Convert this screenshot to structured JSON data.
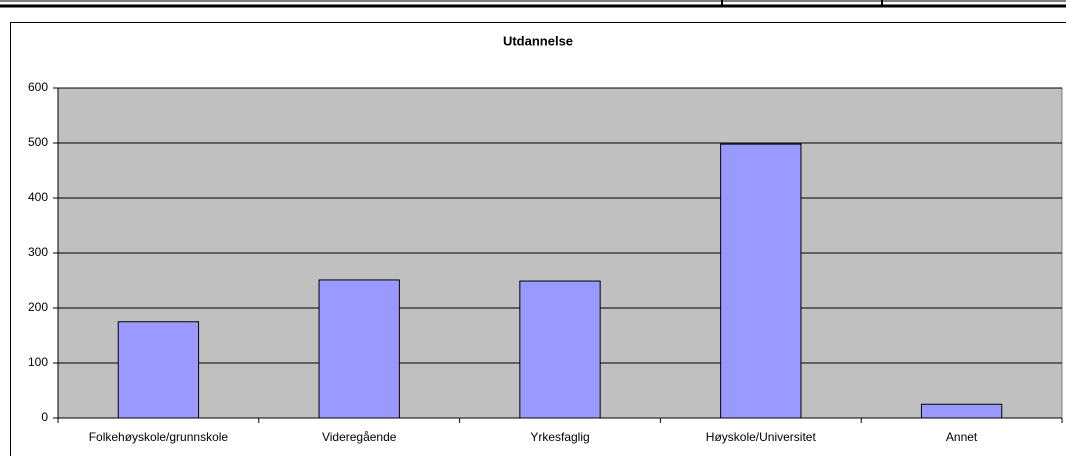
{
  "chart_data": {
    "type": "bar",
    "title": "Utdannelse",
    "categories": [
      "Folkehøyskole/grunnskole",
      "Videregående",
      "Yrkesfaglig",
      "Høyskole/Universitet",
      "Annet"
    ],
    "values": [
      175,
      251,
      249,
      498,
      25
    ],
    "color": "#9999ff",
    "ylim": [
      0,
      600
    ],
    "yticks": [
      0,
      100,
      200,
      300,
      400,
      500,
      600
    ],
    "grid": true
  }
}
